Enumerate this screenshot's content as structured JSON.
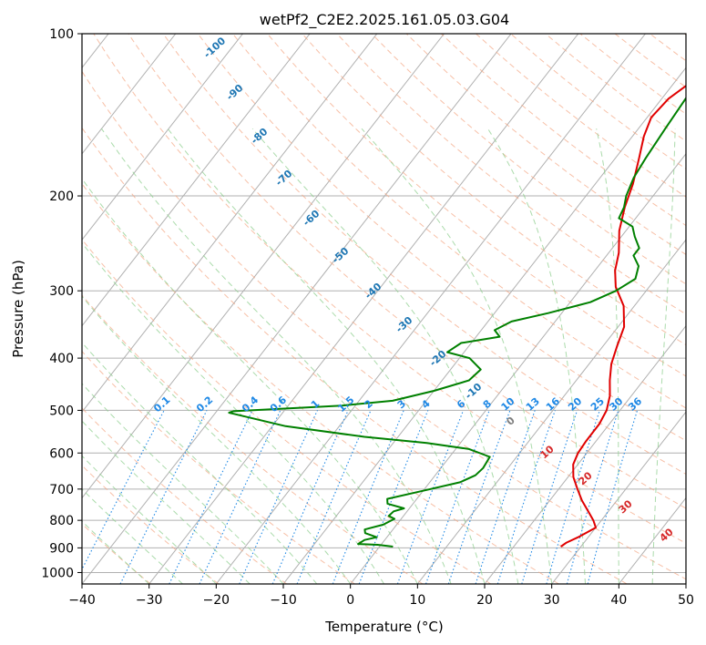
{
  "chart_data": {
    "type": "skew-t",
    "title": "wetPf2_C2E2.2025.161.05.03.G04",
    "xlabel": "Temperature (°C)",
    "ylabel": "Pressure (hPa)",
    "xlim": [
      -40,
      50
    ],
    "ylim": [
      1050,
      100
    ],
    "y_scale": "log",
    "grid": true,
    "x_ticks": [
      -40,
      -30,
      -20,
      -10,
      0,
      10,
      20,
      30,
      40,
      50
    ],
    "x_tick_labels": [
      "−40",
      "−30",
      "−20",
      "−10",
      "0",
      "10",
      "20",
      "30",
      "40",
      "50"
    ],
    "y_ticks": [
      100,
      200,
      300,
      400,
      500,
      600,
      700,
      800,
      900,
      1000
    ],
    "y_tick_labels": [
      "100",
      "200",
      "300",
      "400",
      "500",
      "600",
      "700",
      "800",
      "900",
      "1000"
    ],
    "series": [
      {
        "color": "#e00000",
        "points": [
          [
            27.0,
            895
          ],
          [
            27.4,
            880
          ],
          [
            28.5,
            860
          ],
          [
            30.0,
            825
          ],
          [
            28.8,
            800
          ],
          [
            27.0,
            770
          ],
          [
            24.8,
            735
          ],
          [
            22.8,
            700
          ],
          [
            20.8,
            665
          ],
          [
            19.3,
            630
          ],
          [
            18.7,
            600
          ],
          [
            18.5,
            570
          ],
          [
            18.5,
            530
          ],
          [
            18.0,
            500
          ],
          [
            16.8,
            470
          ],
          [
            15.0,
            440
          ],
          [
            13.3,
            410
          ],
          [
            12.1,
            380
          ],
          [
            10.9,
            350
          ],
          [
            8.4,
            320
          ],
          [
            5.0,
            295
          ],
          [
            3.0,
            275
          ],
          [
            1.5,
            255
          ],
          [
            -1.0,
            232
          ],
          [
            -2.9,
            210
          ],
          [
            -4.4,
            190
          ],
          [
            -6.5,
            170
          ],
          [
            -8.3,
            155
          ],
          [
            -9.4,
            143
          ],
          [
            -9.0,
            132
          ],
          [
            -7.4,
            122
          ],
          [
            -4.7,
            113
          ],
          [
            -3.5,
            106
          ],
          [
            -3.8,
            100
          ]
        ]
      },
      {
        "color": "#008000",
        "points": [
          [
            2.0,
            895
          ],
          [
            -0.5,
            888
          ],
          [
            -3.5,
            885
          ],
          [
            -3.0,
            870
          ],
          [
            -1.5,
            860
          ],
          [
            -3.7,
            845
          ],
          [
            -4.2,
            832
          ],
          [
            -2.0,
            815
          ],
          [
            -1.0,
            795
          ],
          [
            -2.2,
            785
          ],
          [
            -2.0,
            770
          ],
          [
            -0.8,
            760
          ],
          [
            -3.8,
            745
          ],
          [
            -4.4,
            730
          ],
          [
            0.0,
            705
          ],
          [
            4.5,
            680
          ],
          [
            6.0,
            660
          ],
          [
            6.3,
            640
          ],
          [
            6.0,
            610
          ],
          [
            2.0,
            590
          ],
          [
            -5.0,
            575
          ],
          [
            -15.0,
            560
          ],
          [
            -28.0,
            535
          ],
          [
            -38.0,
            505
          ],
          [
            -37.5,
            502
          ],
          [
            -22.0,
            490
          ],
          [
            -15.0,
            480
          ],
          [
            -10.0,
            460
          ],
          [
            -6.0,
            440
          ],
          [
            -5.5,
            420
          ],
          [
            -8.5,
            400
          ],
          [
            -12.5,
            390
          ],
          [
            -11.5,
            375
          ],
          [
            -6.5,
            365
          ],
          [
            -8.0,
            355
          ],
          [
            -6.5,
            342
          ],
          [
            -2.0,
            330
          ],
          [
            3.0,
            315
          ],
          [
            5.5,
            300
          ],
          [
            7.0,
            285
          ],
          [
            6.0,
            270
          ],
          [
            4.0,
            258
          ],
          [
            4.0,
            250
          ],
          [
            2.0,
            238
          ],
          [
            0.5,
            228
          ],
          [
            -2.5,
            220
          ],
          [
            -3.0,
            210
          ],
          [
            -4.0,
            200
          ],
          [
            -5.0,
            185
          ],
          [
            -5.5,
            170
          ],
          [
            -6.0,
            150
          ],
          [
            -6.5,
            130
          ],
          [
            -6.0,
            120
          ],
          [
            -4.0,
            108
          ],
          [
            0.0,
            100
          ]
        ]
      }
    ],
    "isotherm_labels_note": "",
    "dry_adiabat_labels": [
      "-100",
      "-90",
      "-80",
      "-70",
      "-60",
      "-50",
      "-40",
      "-30",
      "-20",
      "-10"
    ],
    "mixing_ratio_labels": [
      "0.1",
      "0.2",
      "0.4",
      "0.6",
      "1",
      "1.5",
      "2",
      "3",
      "4",
      "6",
      "8",
      "10",
      "13",
      "16",
      "20",
      "25",
      "30",
      "36"
    ],
    "moist_adiabat_labels": [
      "0",
      "10",
      "20",
      "30",
      "40"
    ],
    "colors": {
      "temperature": "#e00000",
      "dewpoint": "#008000",
      "dry_adiabat": "#f4a582",
      "moist_adiabat": "#8fcf8f",
      "mixing_ratio": "#1e88e5",
      "isotherm": "#b0b0b0",
      "dry_label": "#1f77b4",
      "moist_label_pos": "#d62728",
      "moist_label_zero": "#7f7f7f"
    }
  }
}
